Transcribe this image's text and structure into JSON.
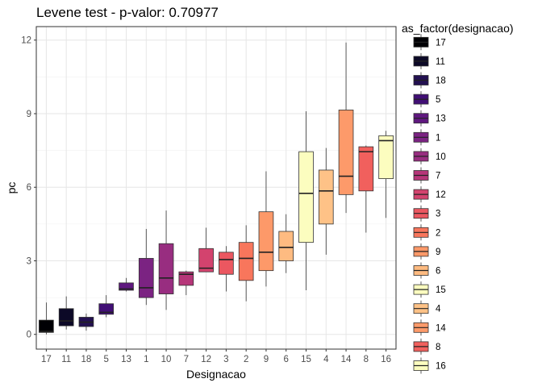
{
  "chart_data": {
    "type": "boxplot",
    "title": "Levene test - p-valor:  0.70977",
    "xlabel": "Designacao",
    "ylabel": "pc",
    "ylim": [
      -0.6,
      12.55
    ],
    "yticks": [
      0,
      3,
      6,
      9,
      12
    ],
    "grid": true,
    "legend": {
      "title": "as_factor(designacao)",
      "placement": "right"
    },
    "categories": [
      "17",
      "11",
      "18",
      "5",
      "13",
      "1",
      "10",
      "7",
      "12",
      "3",
      "2",
      "9",
      "6",
      "15",
      "4",
      "14",
      "8",
      "16"
    ],
    "boxes": [
      {
        "category": "17",
        "min": 0.0,
        "q1": 0.08,
        "median": 0.12,
        "q3": 0.58,
        "max": 1.3,
        "color": "#000004"
      },
      {
        "category": "11",
        "min": 0.2,
        "q1": 0.35,
        "median": 0.55,
        "q3": 1.05,
        "max": 1.55,
        "color": "#0c0927"
      },
      {
        "category": "18",
        "min": 0.15,
        "q1": 0.32,
        "median": 0.5,
        "q3": 0.7,
        "max": 0.85,
        "color": "#231151"
      },
      {
        "category": "5",
        "min": 0.7,
        "q1": 0.82,
        "median": 0.9,
        "q3": 1.25,
        "max": 1.6,
        "color": "#410f75"
      },
      {
        "category": "13",
        "min": 1.75,
        "q1": 1.8,
        "median": 1.85,
        "q3": 2.1,
        "max": 2.3,
        "color": "#5f187f"
      },
      {
        "category": "1",
        "min": 1.2,
        "q1": 1.5,
        "median": 1.9,
        "q3": 3.1,
        "max": 4.3,
        "color": "#7b2382"
      },
      {
        "category": "10",
        "min": 1.0,
        "q1": 1.65,
        "median": 2.3,
        "q3": 3.7,
        "max": 5.05,
        "color": "#982d80"
      },
      {
        "category": "7",
        "min": 1.6,
        "q1": 2.0,
        "median": 2.45,
        "q3": 2.55,
        "max": 2.6,
        "color": "#b63679"
      },
      {
        "category": "12",
        "min": 2.55,
        "q1": 2.55,
        "median": 2.7,
        "q3": 3.5,
        "max": 4.35,
        "color": "#d3436e"
      },
      {
        "category": "3",
        "min": 1.75,
        "q1": 2.45,
        "median": 3.05,
        "q3": 3.35,
        "max": 3.6,
        "color": "#eb5760"
      },
      {
        "category": "2",
        "min": 1.35,
        "q1": 2.2,
        "median": 3.1,
        "q3": 3.75,
        "max": 4.45,
        "color": "#f8765c"
      },
      {
        "category": "9",
        "min": 1.95,
        "q1": 2.6,
        "median": 3.35,
        "q3": 5.0,
        "max": 6.65,
        "color": "#fd9969"
      },
      {
        "category": "6",
        "min": 2.5,
        "q1": 3.0,
        "median": 3.55,
        "q3": 4.2,
        "max": 4.9,
        "color": "#febb81"
      },
      {
        "category": "15",
        "min": 1.8,
        "q1": 3.75,
        "median": 5.75,
        "q3": 7.45,
        "max": 9.1,
        "color": "#fcfdbf"
      },
      {
        "category": "4",
        "min": 3.25,
        "q1": 4.5,
        "median": 5.85,
        "q3": 6.7,
        "max": 7.6,
        "color": "#fec287"
      },
      {
        "category": "14",
        "min": 4.95,
        "q1": 5.7,
        "median": 6.45,
        "q3": 9.15,
        "max": 11.9,
        "color": "#fd9a6a"
      },
      {
        "category": "8",
        "min": 4.15,
        "q1": 5.85,
        "median": 7.45,
        "q3": 7.65,
        "max": 7.7,
        "color": "#f1605d"
      },
      {
        "category": "16",
        "min": 4.75,
        "q1": 6.35,
        "median": 7.9,
        "q3": 8.1,
        "max": 8.3,
        "color": "#fcfdbf"
      }
    ],
    "legend_entries": [
      {
        "label": "17",
        "color": "#000004"
      },
      {
        "label": "11",
        "color": "#0c0927"
      },
      {
        "label": "18",
        "color": "#231151"
      },
      {
        "label": "5",
        "color": "#410f75"
      },
      {
        "label": "13",
        "color": "#5f187f"
      },
      {
        "label": "1",
        "color": "#7b2382"
      },
      {
        "label": "10",
        "color": "#982d80"
      },
      {
        "label": "7",
        "color": "#b63679"
      },
      {
        "label": "12",
        "color": "#d3436e"
      },
      {
        "label": "3",
        "color": "#eb5760"
      },
      {
        "label": "2",
        "color": "#f8765c"
      },
      {
        "label": "9",
        "color": "#fd9969"
      },
      {
        "label": "6",
        "color": "#febb81"
      },
      {
        "label": "15",
        "color": "#fcfdbf"
      },
      {
        "label": "4",
        "color": "#fec287"
      },
      {
        "label": "14",
        "color": "#fd9a6a"
      },
      {
        "label": "8",
        "color": "#f1605d"
      },
      {
        "label": "16",
        "color": "#fcfdbf"
      }
    ]
  }
}
